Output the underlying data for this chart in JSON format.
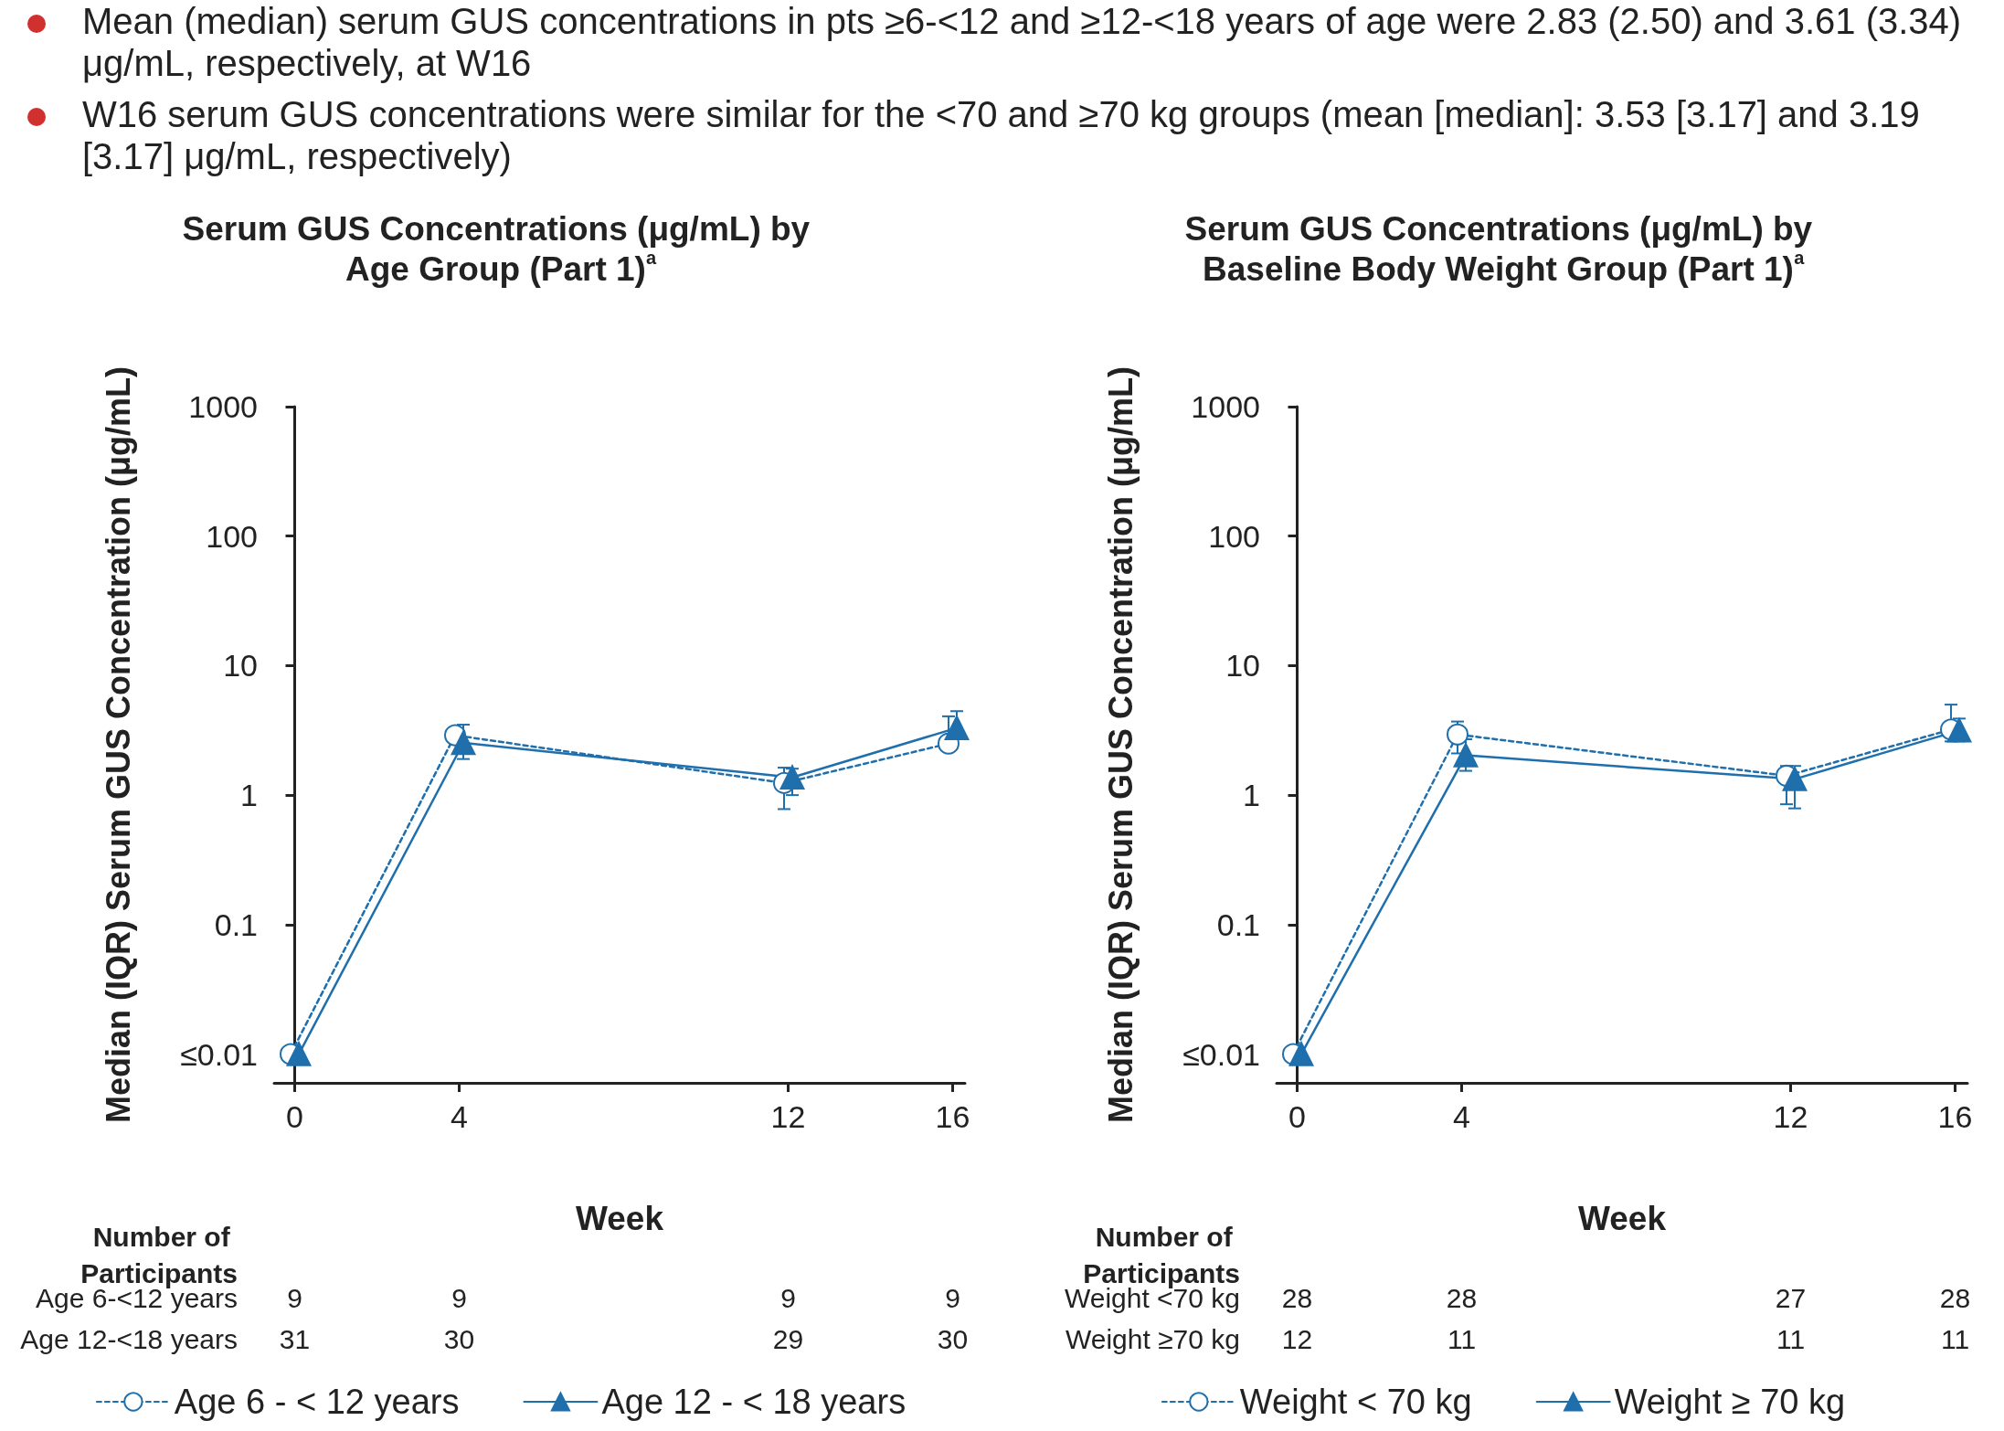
{
  "chart_data": [
    {
      "type": "other",
      "annotations": [
        "Mean (median) serum GUS concentrations in pts ≥6-<12 and ≥12-<18 years of age were 2.83 (2.50) and 3.61 (3.34) μg/mL, respectively, at W16",
        "W16 serum GUS concentrations were similar for the <70 and ≥70 kg groups (mean [median]: 3.53 [3.17] and 3.19 [3.17] μg/mL, respectively)"
      ]
    },
    {
      "type": "line",
      "title": "Serum GUS Concentrations (μg/mL) by Age Group (Part 1)$^{a}$",
      "xlabel": "Week",
      "ylabel": "Median (IQR) Serum GUS Concentration (μg/mL)",
      "log": "y",
      "xlim": [
        -0.5,
        16.3
      ],
      "xticks": [
        0,
        4,
        12,
        16
      ],
      "ylim": [
        0.006,
        1000
      ],
      "yticks": [
        {
          "value": 0.01,
          "label": "≤0.01"
        },
        0.1,
        1,
        10,
        100,
        1000
      ],
      "legend": "bottom",
      "series": [
        {
          "name": "Age 6 - < 12 years",
          "color": "#1f6fad",
          "marker": "circle",
          "line_style": "dashed",
          "x": [
            -0.1,
            3.9,
            11.9,
            15.9
          ],
          "values": [
            0.01,
            2.9,
            1.24,
            2.5
          ],
          "errors": [
            null,
            null,
            [
              0.78,
              1.63
            ],
            [
              2.2,
              4.06
            ]
          ]
        },
        {
          "name": "Age 12 - < 18 years",
          "color": "#1f6fad",
          "marker": "triangle",
          "line_style": "solid",
          "x": [
            0.1,
            4.1,
            12.1,
            16.1
          ],
          "values": [
            0.01,
            2.53,
            1.37,
            3.3
          ],
          "errors": [
            null,
            [
              1.9,
              3.5
            ],
            [
              1.0,
              1.6
            ],
            [
              3.3,
              4.45
            ]
          ]
        }
      ],
      "annotations": [
        "Number of Participants",
        "Age 6-<12 years",
        "9",
        "9",
        "9",
        "9",
        "Age 12-<18 years",
        "31",
        "30",
        "29",
        "30"
      ]
    },
    {
      "type": "line",
      "title": "Serum GUS Concentrations (μg/mL) by Baseline Body Weight Group (Part 1)$^{a}$",
      "xlabel": "Week",
      "ylabel": "Median (IQR) Serum GUS Concentration (μg/mL)",
      "log": "y",
      "xlim": [
        -0.5,
        16.3
      ],
      "xticks": [
        0,
        4,
        12,
        16
      ],
      "ylim": [
        0.006,
        1000
      ],
      "yticks": [
        {
          "value": 0.01,
          "label": "≤0.01"
        },
        0.1,
        1,
        10,
        100,
        1000
      ],
      "legend": "bottom",
      "series": [
        {
          "name": "Weight < 70 kg",
          "color": "#1f6fad",
          "marker": "circle",
          "line_style": "dashed",
          "x": [
            -0.1,
            3.9,
            11.9,
            15.9
          ],
          "values": [
            0.01,
            2.94,
            1.41,
            3.21
          ],
          "errors": [
            null,
            [
              2.1,
              3.7
            ],
            [
              0.85,
              1.68
            ],
            [
              2.6,
              5.0
            ]
          ]
        },
        {
          "name": "Weight ≥ 70 kg",
          "color": "#1f6fad",
          "marker": "triangle",
          "line_style": "solid",
          "x": [
            0.1,
            4.1,
            12.1,
            16.1
          ],
          "values": [
            0.01,
            2.03,
            1.33,
            3.16
          ],
          "errors": [
            null,
            [
              1.54,
              2.7
            ],
            [
              0.79,
              1.68
            ],
            [
              2.6,
              3.9
            ]
          ]
        }
      ],
      "annotations": [
        "Number of Participants",
        "Weight <70 kg",
        "28",
        "28",
        "27",
        "28",
        "Weight ≥70 kg",
        "12",
        "11",
        "11",
        "11"
      ]
    }
  ]
}
